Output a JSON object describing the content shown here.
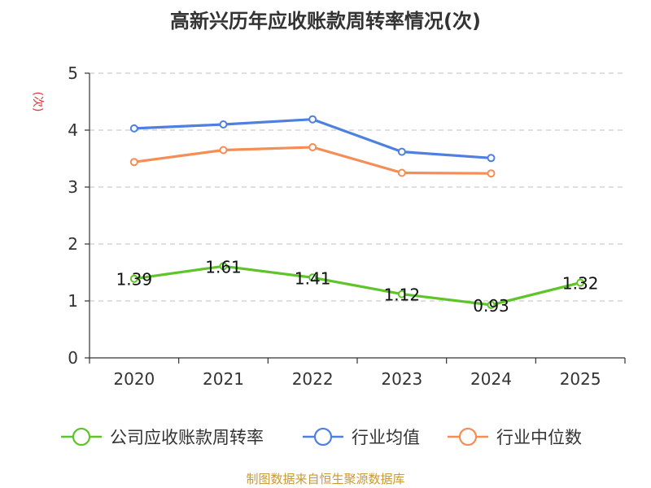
{
  "chart_data": {
    "type": "line",
    "title": "高新兴历年应收账款周转率情况(次)",
    "ylabel": "(次)",
    "xlabel": "",
    "ylim": [
      0,
      5
    ],
    "yticks": [
      0,
      1,
      2,
      3,
      4,
      5
    ],
    "categories": [
      "2020",
      "2021",
      "2022",
      "2023",
      "2024",
      "2025"
    ],
    "grid": true,
    "legend_position": "bottom",
    "series": [
      {
        "name": "公司应收账款周转率",
        "color": "#5ec42a",
        "values": [
          1.39,
          1.61,
          1.41,
          1.12,
          0.93,
          1.32
        ],
        "labels": [
          "1.39",
          "1.61",
          "1.41",
          "1.12",
          "0.93",
          "1.32"
        ],
        "show_labels": true
      },
      {
        "name": "行业均值",
        "color": "#4f80df",
        "values": [
          4.03,
          4.1,
          4.19,
          3.62,
          3.51,
          null
        ],
        "show_labels": false
      },
      {
        "name": "行业中位数",
        "color": "#f68d55",
        "values": [
          3.44,
          3.65,
          3.7,
          3.25,
          3.24,
          null
        ],
        "show_labels": false
      }
    ]
  },
  "source": "制图数据来自恒生聚源数据库"
}
